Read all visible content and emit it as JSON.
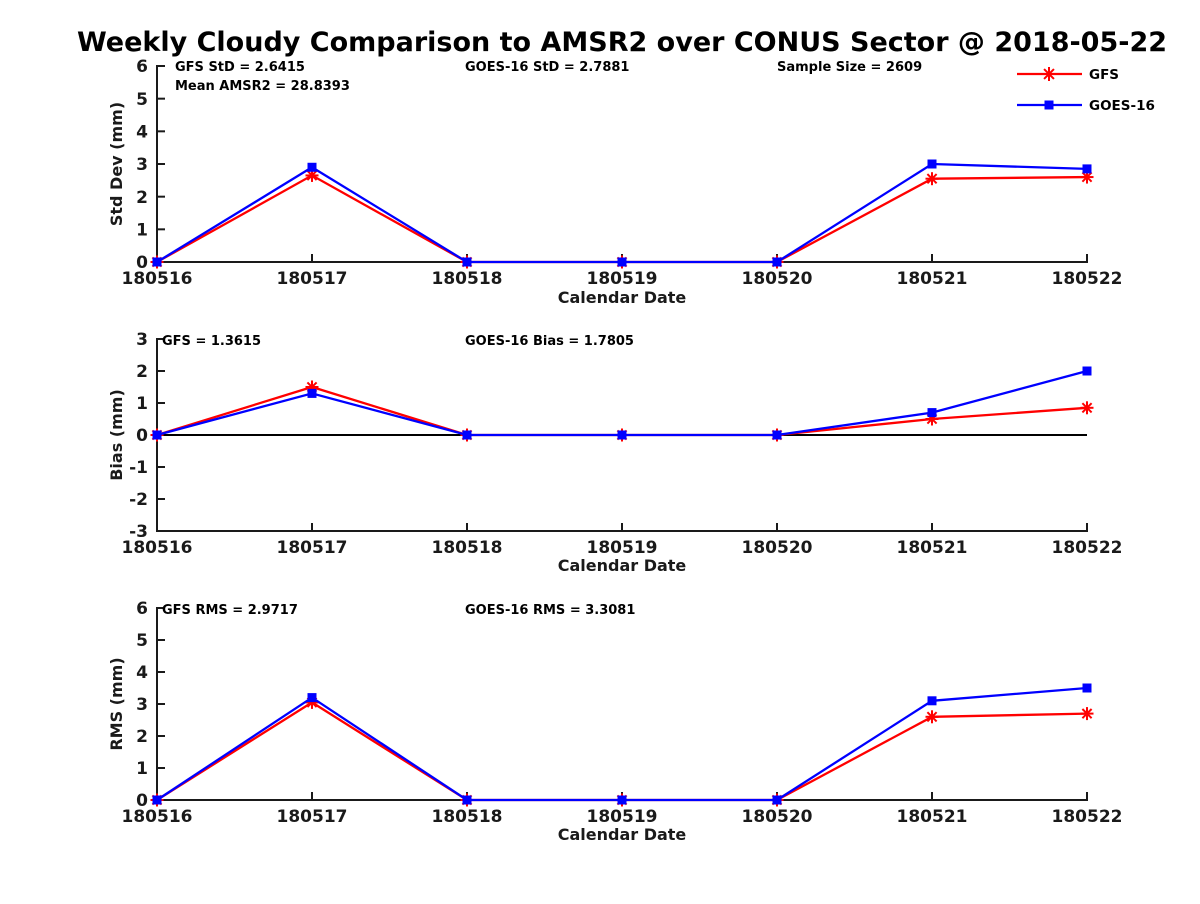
{
  "title": "Weekly Cloudy Comparison to AMSR2 over CONUS Sector @ 2018-05-22",
  "x_axis_label": "Calendar Date",
  "categories": [
    "180516",
    "180517",
    "180518",
    "180519",
    "180520",
    "180521",
    "180522"
  ],
  "colors": {
    "gfs": "#ff0000",
    "goes16": "#0000ff",
    "axis": "#1a1a1a",
    "text": "#000000",
    "zero_line": "#000000"
  },
  "legend": [
    {
      "label": "GFS",
      "color": "#ff0000",
      "marker": "asterisk"
    },
    {
      "label": "GOES-16",
      "color": "#0000ff",
      "marker": "square"
    }
  ],
  "chart_data": [
    {
      "type": "line",
      "name": "std-dev",
      "ylabel": "Std Dev (mm)",
      "xlabel": "Calendar Date",
      "ylim": [
        0,
        6
      ],
      "yticks": [
        0,
        1,
        2,
        3,
        4,
        5,
        6
      ],
      "grid": false,
      "annotations": [
        "GFS StD = 2.6415",
        "Mean AMSR2 = 28.8393",
        "GOES-16 StD = 2.7881",
        "Sample Size = 2609"
      ],
      "categories": [
        "180516",
        "180517",
        "180518",
        "180519",
        "180520",
        "180521",
        "180522"
      ],
      "series": [
        {
          "name": "GFS",
          "color": "#ff0000",
          "marker": "asterisk",
          "values": [
            0,
            2.65,
            0,
            0,
            0,
            2.55,
            2.6
          ]
        },
        {
          "name": "GOES-16",
          "color": "#0000ff",
          "marker": "square",
          "values": [
            0,
            2.9,
            0,
            0,
            0,
            3.0,
            2.85
          ]
        }
      ]
    },
    {
      "type": "line",
      "name": "bias",
      "ylabel": "Bias (mm)",
      "xlabel": "Calendar Date",
      "ylim": [
        -3,
        3
      ],
      "yticks": [
        -3,
        -2,
        -1,
        0,
        1,
        2,
        3
      ],
      "grid": false,
      "zero_line": true,
      "annotations": [
        "GFS = 1.3615",
        "GOES-16 Bias  = 1.7805"
      ],
      "categories": [
        "180516",
        "180517",
        "180518",
        "180519",
        "180520",
        "180521",
        "180522"
      ],
      "series": [
        {
          "name": "GFS",
          "color": "#ff0000",
          "marker": "asterisk",
          "values": [
            0,
            1.5,
            0,
            0,
            0,
            0.5,
            0.85
          ]
        },
        {
          "name": "GOES-16",
          "color": "#0000ff",
          "marker": "square",
          "values": [
            0,
            1.3,
            0,
            0,
            0,
            0.7,
            2.0
          ]
        }
      ]
    },
    {
      "type": "line",
      "name": "rms",
      "ylabel": "RMS (mm)",
      "xlabel": "Calendar Date",
      "ylim": [
        0,
        6
      ],
      "yticks": [
        0,
        1,
        2,
        3,
        4,
        5,
        6
      ],
      "grid": false,
      "annotations": [
        "GFS RMS = 2.9717",
        "GOES-16 RMS = 3.3081"
      ],
      "categories": [
        "180516",
        "180517",
        "180518",
        "180519",
        "180520",
        "180521",
        "180522"
      ],
      "series": [
        {
          "name": "GFS",
          "color": "#ff0000",
          "marker": "asterisk",
          "values": [
            0,
            3.05,
            0,
            0,
            0,
            2.6,
            2.7
          ]
        },
        {
          "name": "GOES-16",
          "color": "#0000ff",
          "marker": "square",
          "values": [
            0,
            3.2,
            0,
            0,
            0,
            3.1,
            3.5
          ]
        }
      ]
    }
  ]
}
